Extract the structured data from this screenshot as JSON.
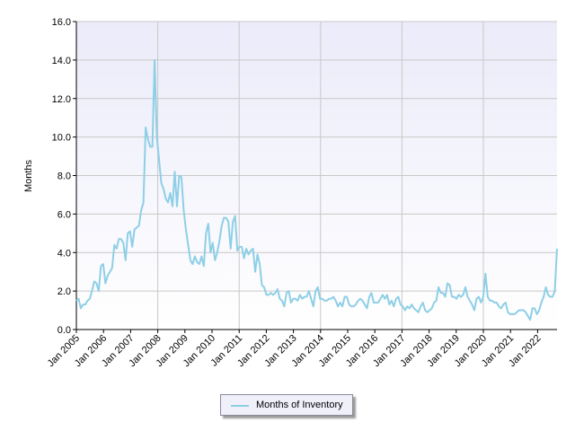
{
  "chart_data": {
    "type": "line",
    "title": "",
    "xlabel": "",
    "ylabel": "Months",
    "ylim": [
      0,
      16
    ],
    "yticks": [
      "0.0",
      "2.0",
      "4.0",
      "6.0",
      "8.0",
      "10.0",
      "12.0",
      "14.0",
      "16.0"
    ],
    "xticks": [
      "Jan 2005",
      "Jan 2006",
      "Jan 2007",
      "Jan 2008",
      "Jan 2009",
      "Jan 2010",
      "Jan 2011",
      "Jan 2012",
      "Jan 2013",
      "Jan 2014",
      "Jan 2015",
      "Jan 2016",
      "Jan 2017",
      "Jan 2018",
      "Jan 2019",
      "Jan 2020",
      "Jan 2021",
      "Jan 2022"
    ],
    "grid": true,
    "legend_position": "bottom-center",
    "colors": {
      "line": "#8ecfe6",
      "plot_top": "#ebebfa",
      "plot_bottom": "#ffffff",
      "grid": "#c8c8c8"
    },
    "series": [
      {
        "name": "Months of Inventory",
        "values": [
          1.5,
          1.6,
          1.1,
          1.3,
          1.3,
          1.5,
          1.6,
          2.0,
          2.5,
          2.4,
          2.0,
          3.3,
          3.4,
          2.4,
          2.8,
          3.0,
          3.2,
          4.4,
          4.2,
          4.7,
          4.7,
          4.5,
          3.6,
          5.0,
          5.1,
          4.3,
          5.2,
          5.3,
          5.4,
          6.2,
          6.6,
          10.5,
          9.9,
          9.5,
          9.5,
          14.0,
          10.0,
          8.8,
          7.6,
          7.3,
          6.8,
          6.6,
          7.1,
          6.4,
          8.2,
          6.4,
          8.0,
          7.9,
          6.2,
          5.2,
          4.4,
          3.6,
          3.4,
          3.8,
          3.5,
          3.4,
          3.8,
          3.3,
          5.0,
          5.5,
          4.0,
          4.5,
          3.6,
          4.0,
          4.6,
          5.4,
          5.8,
          5.8,
          5.6,
          4.2,
          5.6,
          5.9,
          4.1,
          4.3,
          4.3,
          3.7,
          4.2,
          3.9,
          4.1,
          4.2,
          3.0,
          3.9,
          3.4,
          2.3,
          2.2,
          1.8,
          1.8,
          1.9,
          1.8,
          1.9,
          2.1,
          1.6,
          1.5,
          1.2,
          1.9,
          2.0,
          1.4,
          1.6,
          1.6,
          1.5,
          1.8,
          1.6,
          1.7,
          1.7,
          2.0,
          1.6,
          1.2,
          2.0,
          2.2,
          1.6,
          1.6,
          1.5,
          1.5,
          1.6,
          1.6,
          1.7,
          1.5,
          1.2,
          1.4,
          1.2,
          1.7,
          1.7,
          1.3,
          1.2,
          1.2,
          1.3,
          1.5,
          1.6,
          1.5,
          1.3,
          1.1,
          1.7,
          1.9,
          1.4,
          1.4,
          1.4,
          1.6,
          1.8,
          1.6,
          1.8,
          1.3,
          1.5,
          1.2,
          1.6,
          1.7,
          1.3,
          1.2,
          1.0,
          1.2,
          1.1,
          1.3,
          1.1,
          1.0,
          0.9,
          1.2,
          1.4,
          1.0,
          0.9,
          1.0,
          1.1,
          1.4,
          1.5,
          2.2,
          1.9,
          1.9,
          1.7,
          2.4,
          2.3,
          1.7,
          1.7,
          1.6,
          1.8,
          1.7,
          1.8,
          2.2,
          1.7,
          1.5,
          1.3,
          1.0,
          1.6,
          1.7,
          1.4,
          1.7,
          2.9,
          1.7,
          1.5,
          1.5,
          1.4,
          1.4,
          1.2,
          1.1,
          1.3,
          1.4,
          0.9,
          0.8,
          0.8,
          0.8,
          0.9,
          1.0,
          1.0,
          1.0,
          0.9,
          0.7,
          0.5,
          1.1,
          1.1,
          0.8,
          1.0,
          1.4,
          1.7,
          2.2,
          1.8,
          1.7,
          1.7,
          2.0,
          4.2
        ]
      }
    ]
  }
}
